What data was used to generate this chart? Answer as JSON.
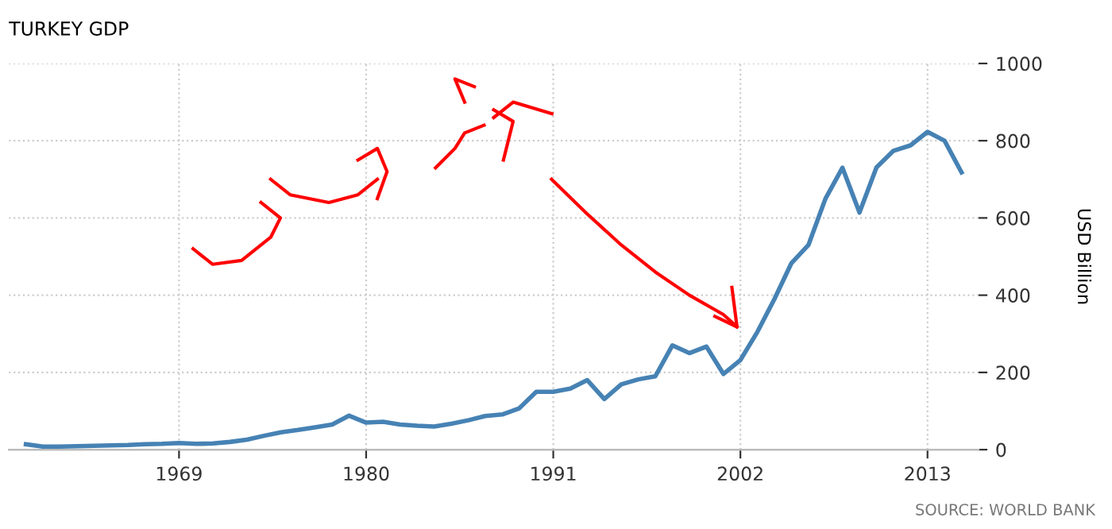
{
  "chart_data": {
    "type": "line",
    "title": "TURKEY GDP",
    "y2label": "USD Billion",
    "x": [
      1960,
      1961,
      1962,
      1963,
      1964,
      1965,
      1966,
      1967,
      1968,
      1969,
      1970,
      1971,
      1972,
      1973,
      1974,
      1975,
      1976,
      1977,
      1978,
      1979,
      1980,
      1981,
      1982,
      1983,
      1984,
      1985,
      1986,
      1987,
      1988,
      1989,
      1990,
      1991,
      1992,
      1993,
      1994,
      1995,
      1996,
      1997,
      1998,
      1999,
      2000,
      2001,
      2002,
      2003,
      2004,
      2005,
      2006,
      2007,
      2008,
      2009,
      2010,
      2011,
      2012,
      2013,
      2014,
      2015
    ],
    "series": [
      {
        "color": "#4682b4",
        "axis": "y2",
        "values": [
          14,
          8,
          8,
          9,
          10,
          11,
          12,
          14,
          15,
          17,
          15,
          16,
          20,
          26,
          36,
          45,
          51,
          58,
          65,
          88,
          70,
          72,
          65,
          62,
          60,
          67,
          76,
          87,
          91,
          107,
          150,
          150,
          158,
          180,
          131,
          169,
          182,
          190,
          270,
          250,
          267,
          196,
          232,
          305,
          390,
          483,
          530,
          650,
          730,
          614,
          731,
          774,
          788,
          823,
          800,
          718
        ]
      }
    ],
    "xlim": [
      1959,
      2016
    ],
    "xticks": [
      1969,
      1980,
      1991,
      2002,
      2013
    ],
    "y2lim": [
      0,
      1000
    ],
    "y2ticks": [
      0,
      200,
      400,
      600,
      800,
      1000
    ],
    "grid": true,
    "line_style": "solid",
    "marker": "none",
    "annotations": [
      "SOURCE: WORLD BANK"
    ]
  }
}
